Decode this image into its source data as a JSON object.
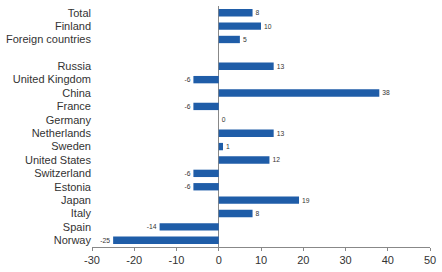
{
  "chart_data": {
    "type": "bar",
    "orientation": "horizontal",
    "categories": [
      "Total",
      "Finland",
      "Foreign countries",
      null,
      "Russia",
      "United Kingdom",
      "China",
      "France",
      "Germany",
      "Netherlands",
      "Sweden",
      "United States",
      "Switzerland",
      "Estonia",
      "Japan",
      "Italy",
      "Spain",
      "Norway"
    ],
    "values": [
      8,
      10,
      5,
      null,
      13,
      -6,
      38,
      -6,
      0,
      13,
      1,
      12,
      -6,
      -6,
      19,
      8,
      -14,
      -25
    ],
    "color": "#1f5da8",
    "xlim": [
      -30,
      50
    ],
    "xticks": [
      -30,
      -20,
      -10,
      0,
      10,
      20,
      30,
      40,
      50
    ],
    "grid": false,
    "data_labels": true
  }
}
